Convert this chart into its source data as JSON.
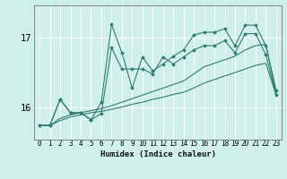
{
  "xlabel": "Humidex (Indice chaleur)",
  "background_color": "#cff0ea",
  "grid_color": "#ffffff",
  "line_color": "#2e7d6e",
  "xticks": [
    0,
    1,
    2,
    3,
    4,
    5,
    6,
    7,
    8,
    9,
    10,
    11,
    12,
    13,
    14,
    15,
    16,
    17,
    18,
    19,
    20,
    21,
    22,
    23
  ],
  "yticks": [
    16,
    17
  ],
  "ylim": [
    15.55,
    17.45
  ],
  "xlim": [
    -0.5,
    23.5
  ],
  "series1_x": [
    0,
    1,
    2,
    3,
    4,
    5,
    6,
    7,
    8,
    9,
    10,
    11,
    12,
    13,
    14,
    15,
    16,
    17,
    18,
    19,
    20,
    21,
    22,
    23
  ],
  "series1_y": [
    15.75,
    15.75,
    16.12,
    15.93,
    15.93,
    15.83,
    16.08,
    17.18,
    16.78,
    16.28,
    16.72,
    16.52,
    16.62,
    16.73,
    16.82,
    17.03,
    17.07,
    17.07,
    17.12,
    16.88,
    17.17,
    17.17,
    16.88,
    16.25
  ],
  "series2_x": [
    0,
    1,
    2,
    3,
    4,
    5,
    6,
    7,
    8,
    9,
    10,
    11,
    12,
    13,
    14,
    15,
    16,
    17,
    18,
    19,
    20,
    21,
    22,
    23
  ],
  "series2_y": [
    15.75,
    15.75,
    16.12,
    15.93,
    15.93,
    15.83,
    15.92,
    16.85,
    16.55,
    16.55,
    16.55,
    16.48,
    16.72,
    16.62,
    16.72,
    16.82,
    16.88,
    16.88,
    16.95,
    16.78,
    17.05,
    17.05,
    16.75,
    16.18
  ],
  "series3_x": [
    0,
    1,
    2,
    3,
    4,
    5,
    6,
    7,
    8,
    9,
    10,
    11,
    12,
    13,
    14,
    15,
    16,
    17,
    18,
    19,
    20,
    21,
    22,
    23
  ],
  "series3_y": [
    15.75,
    15.75,
    15.85,
    15.9,
    15.93,
    15.96,
    15.99,
    16.03,
    16.08,
    16.13,
    16.18,
    16.23,
    16.28,
    16.33,
    16.38,
    16.48,
    16.58,
    16.63,
    16.68,
    16.73,
    16.82,
    16.88,
    16.9,
    16.2
  ],
  "series4_x": [
    0,
    1,
    2,
    3,
    4,
    5,
    6,
    7,
    8,
    9,
    10,
    11,
    12,
    13,
    14,
    15,
    16,
    17,
    18,
    19,
    20,
    21,
    22,
    23
  ],
  "series4_y": [
    15.75,
    15.75,
    15.82,
    15.87,
    15.9,
    15.93,
    15.95,
    15.98,
    16.01,
    16.05,
    16.08,
    16.12,
    16.15,
    16.19,
    16.22,
    16.28,
    16.35,
    16.4,
    16.45,
    16.5,
    16.55,
    16.6,
    16.63,
    16.18
  ]
}
